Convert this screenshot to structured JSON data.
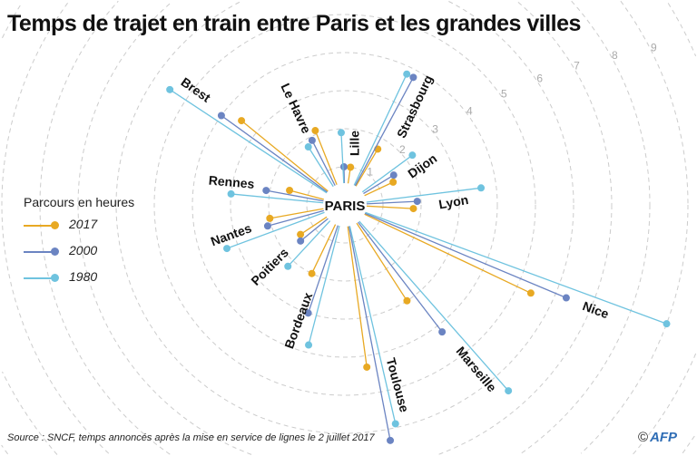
{
  "title": "Temps de trajet en train entre Paris et les grandes villes",
  "center_label": "PARIS",
  "legend": {
    "title": "Parcours en heures"
  },
  "source": "Source : SNCF, temps annoncés après la mise en service de lignes le 2 juillet 2017",
  "credit": {
    "symbol": "©",
    "logo": "AFP"
  },
  "chart_data": {
    "type": "radial-line",
    "title": "Temps de trajet en train entre Paris et les grandes villes",
    "unit": "Parcours en heures",
    "radial_ticks": [
      "1",
      "2",
      "3",
      "4",
      "5",
      "6",
      "7",
      "8",
      "9"
    ],
    "grid": true,
    "legend_placement": "left",
    "cities": [
      "Brest",
      "Le Havre",
      "Lille",
      "Strasbourg",
      "Dijon",
      "Lyon",
      "Rennes",
      "Nantes",
      "Poitiers",
      "Bordeaux",
      "Toulouse",
      "Marseille",
      "Nice"
    ],
    "series": [
      {
        "name": "2017",
        "color": "#e8a923",
        "values": [
          3.5,
          2.1,
          1.0,
          1.7,
          1.4,
          1.8,
          1.5,
          2.0,
          1.4,
          2.0,
          4.3,
          3.0,
          5.4
        ]
      },
      {
        "name": "2000",
        "color": "#6b84c2",
        "values": [
          4.0,
          1.9,
          1.0,
          3.8,
          1.5,
          1.9,
          2.1,
          2.1,
          1.5,
          3.0,
          6.3,
          4.2,
          6.3
        ]
      },
      {
        "name": "1980",
        "color": "#6fc3df",
        "values": [
          5.5,
          1.8,
          1.9,
          3.8,
          2.2,
          3.6,
          3.0,
          3.3,
          2.2,
          3.8,
          5.9,
          6.5,
          9.0
        ]
      }
    ]
  }
}
